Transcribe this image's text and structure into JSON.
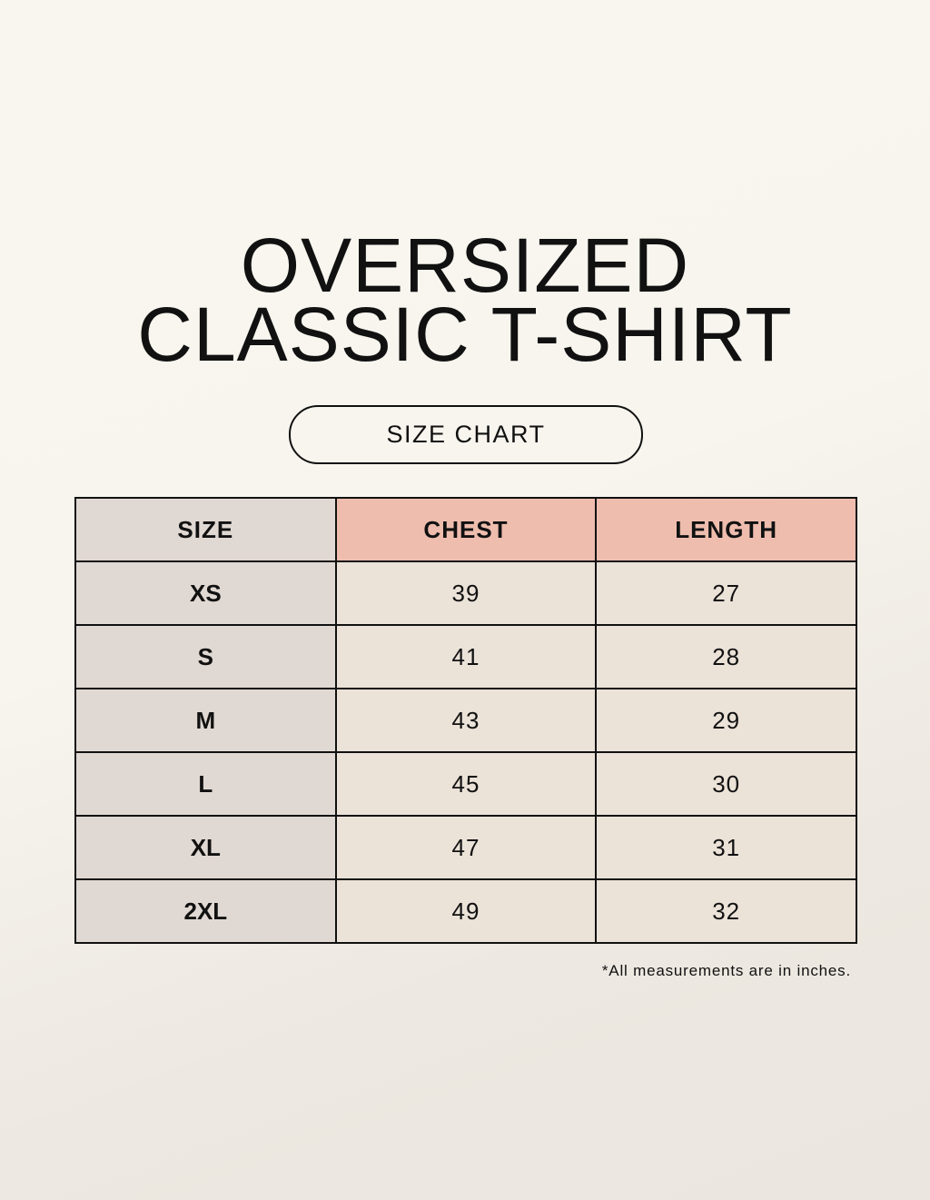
{
  "title": {
    "line1": "OVERSIZED",
    "line2": "CLASSIC T-SHIRT"
  },
  "subtitle": "SIZE CHART",
  "table": {
    "headers": [
      "SIZE",
      "CHEST",
      "LENGTH"
    ],
    "rows": [
      [
        "XS",
        "39",
        "27"
      ],
      [
        "S",
        "41",
        "28"
      ],
      [
        "M",
        "43",
        "29"
      ],
      [
        "L",
        "45",
        "30"
      ],
      [
        "XL",
        "47",
        "31"
      ],
      [
        "2XL",
        "49",
        "32"
      ]
    ]
  },
  "note": "*All measurements are in inches.",
  "colors": {
    "header_highlight": "#eebdae",
    "size_column": "#e0d8d2",
    "cell": "#ebe2d8"
  }
}
